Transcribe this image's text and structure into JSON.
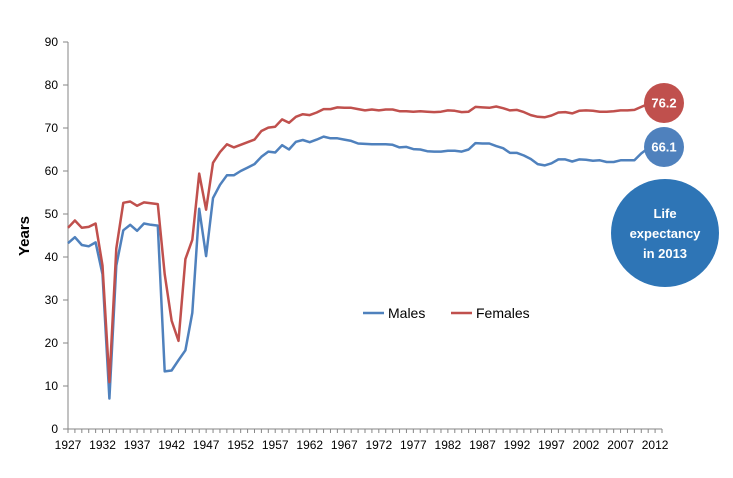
{
  "chart_data": {
    "type": "line",
    "ylabel": "Years",
    "ylim": [
      0,
      90
    ],
    "yticks": [
      "0",
      "10",
      "20",
      "30",
      "40",
      "50",
      "60",
      "70",
      "80",
      "90"
    ],
    "xticks": [
      "1927",
      "1932",
      "1937",
      "1942",
      "1947",
      "1952",
      "1957",
      "1962",
      "1967",
      "1972",
      "1977",
      "1982",
      "1987",
      "1992",
      "1997",
      "2002",
      "2007",
      "2012"
    ],
    "xlim": [
      1927,
      2013
    ],
    "grid": false,
    "legend_position": "center-right",
    "colors": {
      "Males": "#4f81bd",
      "Females": "#c0504d",
      "callout": "#2e75b6"
    },
    "series": [
      {
        "name": "Males",
        "x": [
          1927,
          1928,
          1929,
          1930,
          1931,
          1932,
          1933,
          1934,
          1935,
          1936,
          1937,
          1938,
          1939,
          1940,
          1941,
          1942,
          1943,
          1944,
          1945,
          1946,
          1947,
          1948,
          1949,
          1950,
          1951,
          1952,
          1953,
          1954,
          1955,
          1956,
          1957,
          1958,
          1959,
          1960,
          1961,
          1962,
          1963,
          1964,
          1965,
          1966,
          1967,
          1968,
          1969,
          1970,
          1971,
          1972,
          1973,
          1974,
          1975,
          1976,
          1977,
          1978,
          1979,
          1980,
          1981,
          1982,
          1983,
          1984,
          1985,
          1986,
          1987,
          1988,
          1989,
          1990,
          1991,
          1992,
          1993,
          1994,
          1995,
          1996,
          1997,
          1998,
          1999,
          2000,
          2001,
          2002,
          2003,
          2004,
          2005,
          2006,
          2007,
          2008,
          2009,
          2010,
          2011,
          2012,
          2013
        ],
        "values": [
          43.2,
          44.6,
          42.8,
          42.5,
          43.4,
          36.0,
          7.1,
          38.0,
          46.2,
          47.5,
          46.1,
          47.8,
          47.5,
          47.3,
          13.4,
          13.6,
          16.0,
          18.3,
          27.0,
          51.2,
          40.2,
          53.7,
          56.8,
          59.0,
          59.0,
          60.0,
          60.8,
          61.6,
          63.3,
          64.5,
          64.3,
          66.0,
          65.0,
          66.8,
          67.2,
          66.7,
          67.3,
          68.0,
          67.6,
          67.6,
          67.3,
          67.0,
          66.4,
          66.3,
          66.2,
          66.2,
          66.2,
          66.1,
          65.5,
          65.6,
          65.1,
          65.0,
          64.6,
          64.5,
          64.5,
          64.7,
          64.7,
          64.5,
          65.0,
          66.5,
          66.4,
          66.4,
          65.8,
          65.3,
          64.2,
          64.2,
          63.6,
          62.8,
          61.6,
          61.3,
          61.8,
          62.7,
          62.7,
          62.2,
          62.7,
          62.6,
          62.4,
          62.5,
          62.1,
          62.1,
          62.5,
          62.5,
          62.5,
          64.1,
          65.3,
          65.8,
          66.1
        ]
      },
      {
        "name": "Females",
        "x": [
          1927,
          1928,
          1929,
          1930,
          1931,
          1932,
          1933,
          1934,
          1935,
          1936,
          1937,
          1938,
          1939,
          1940,
          1941,
          1942,
          1943,
          1944,
          1945,
          1946,
          1947,
          1948,
          1949,
          1950,
          1951,
          1952,
          1953,
          1954,
          1955,
          1956,
          1957,
          1958,
          1959,
          1960,
          1961,
          1962,
          1963,
          1964,
          1965,
          1966,
          1967,
          1968,
          1969,
          1970,
          1971,
          1972,
          1973,
          1974,
          1975,
          1976,
          1977,
          1978,
          1979,
          1980,
          1981,
          1982,
          1983,
          1984,
          1985,
          1986,
          1987,
          1988,
          1989,
          1990,
          1991,
          1992,
          1993,
          1994,
          1995,
          1996,
          1997,
          1998,
          1999,
          2000,
          2001,
          2002,
          2003,
          2004,
          2005,
          2006,
          2007,
          2008,
          2009,
          2010,
          2011,
          2012,
          2013
        ],
        "values": [
          46.8,
          48.5,
          46.8,
          47.0,
          47.8,
          38.0,
          10.9,
          42.0,
          52.6,
          52.9,
          51.9,
          52.7,
          52.5,
          52.3,
          36.0,
          25.2,
          20.5,
          39.5,
          44.0,
          59.4,
          51.0,
          61.9,
          64.4,
          66.2,
          65.5,
          66.1,
          66.7,
          67.3,
          69.3,
          70.1,
          70.3,
          72.0,
          71.2,
          72.6,
          73.2,
          73.0,
          73.6,
          74.4,
          74.4,
          74.8,
          74.7,
          74.7,
          74.4,
          74.1,
          74.3,
          74.1,
          74.3,
          74.3,
          73.9,
          73.9,
          73.8,
          73.9,
          73.8,
          73.7,
          73.8,
          74.1,
          74.0,
          73.7,
          73.8,
          74.9,
          74.8,
          74.7,
          75.0,
          74.6,
          74.1,
          74.2,
          73.7,
          73.0,
          72.6,
          72.5,
          72.9,
          73.6,
          73.7,
          73.4,
          74.0,
          74.1,
          74.0,
          73.8,
          73.8,
          73.9,
          74.1,
          74.1,
          74.2,
          74.9,
          75.6,
          76.0,
          76.2
        ]
      }
    ],
    "annotations": {
      "males_2013": "66.1",
      "females_2013": "76.2",
      "callout_lines": [
        "Life",
        "expectancy",
        "in 2013"
      ]
    }
  }
}
